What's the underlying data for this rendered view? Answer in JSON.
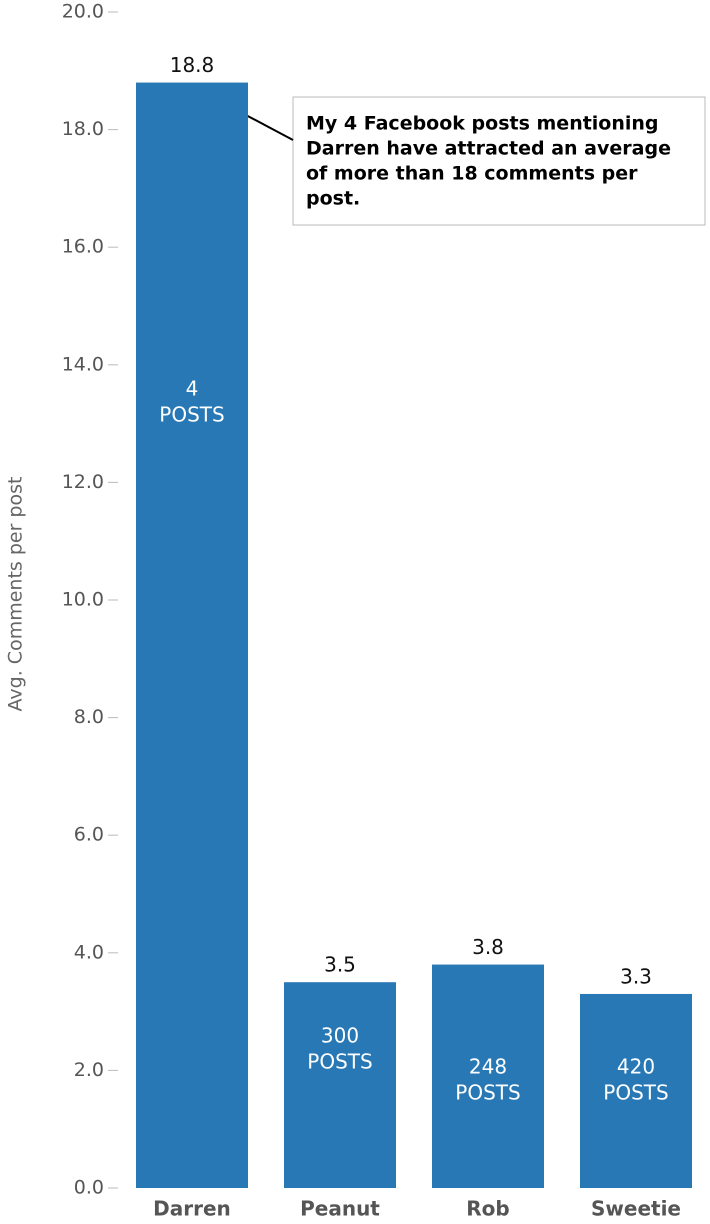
{
  "chart_data": {
    "type": "bar",
    "y_label": "Avg. Comments per post",
    "categories": [
      "Darren",
      "Peanut",
      "Rob",
      "Sweetie"
    ],
    "values": [
      18.8,
      3.5,
      3.8,
      3.3
    ],
    "post_counts": [
      4,
      300,
      248,
      420
    ],
    "post_unit": "POSTS",
    "color": "#2878b5",
    "ylim": [
      0,
      20
    ],
    "yticks": [
      {
        "value": 0,
        "label": "0.0"
      },
      {
        "value": 2,
        "label": "2.0"
      },
      {
        "value": 4,
        "label": "4.0"
      },
      {
        "value": 6,
        "label": "6.0"
      },
      {
        "value": 8,
        "label": "8.0"
      },
      {
        "value": 10,
        "label": "10.0"
      },
      {
        "value": 12,
        "label": "12.0"
      },
      {
        "value": 14,
        "label": "14.0"
      },
      {
        "value": 16,
        "label": "16.0"
      },
      {
        "value": 18,
        "label": "18.0"
      },
      {
        "value": 20,
        "label": "20.0"
      }
    ],
    "annotation": [
      "My 4 Facebook posts mentioning",
      "Darren have attracted an average",
      "of more than 18 comments per",
      "post."
    ]
  }
}
